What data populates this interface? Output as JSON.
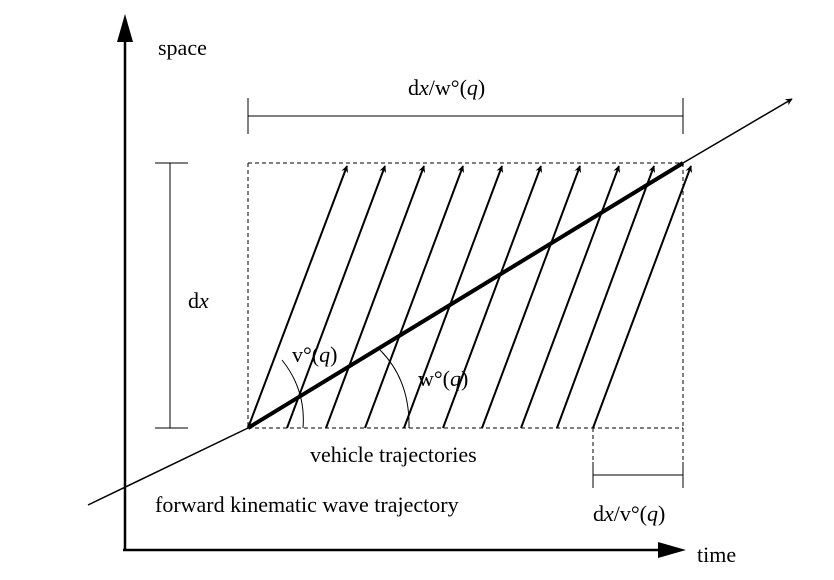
{
  "axes": {
    "y_label": "space",
    "x_label": "time"
  },
  "labels": {
    "dx_w": {
      "pre": "d",
      "x": "x",
      "mid": "/w°(",
      "q": "q",
      "post": ")"
    },
    "dx": {
      "pre": "d",
      "x": "x"
    },
    "v_angle": {
      "pre": "v°(",
      "q": "q",
      "post": ")"
    },
    "w_angle": {
      "pre": "w°(",
      "q": "q",
      "post": ")"
    },
    "vehicle_trajectories": "vehicle trajectories",
    "forward_wave": "forward kinematic wave trajectory",
    "dx_v": {
      "pre": "d",
      "x": "x",
      "mid": "/v°(",
      "q": "q",
      "post": ")"
    }
  },
  "colors": {
    "ink": "#000000",
    "background": "#ffffff"
  }
}
